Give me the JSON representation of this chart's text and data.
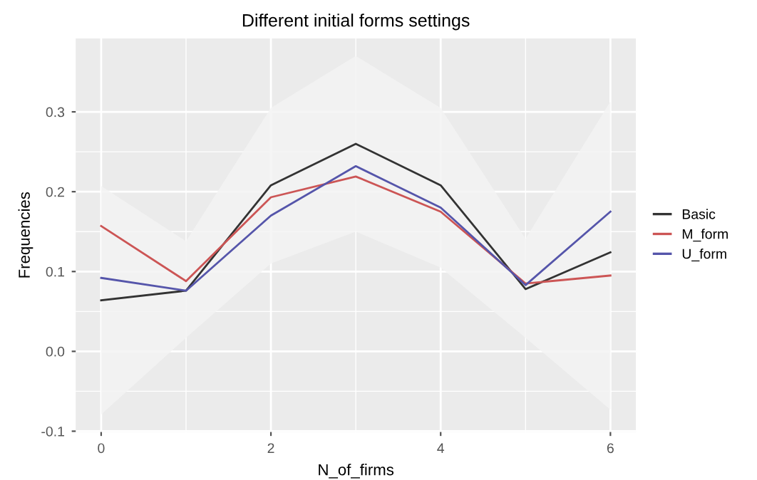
{
  "chart_data": {
    "type": "line",
    "title": "Different initial forms settings",
    "xlabel": "N_of_firms",
    "ylabel": "Frequencies",
    "x": [
      0,
      1,
      2,
      3,
      4,
      5,
      6
    ],
    "series": [
      {
        "name": "Basic",
        "color": "#333333",
        "values": [
          0.064,
          0.076,
          0.208,
          0.26,
          0.208,
          0.078,
          0.124
        ],
        "lower": [
          -0.079,
          0.017,
          0.11,
          0.15,
          0.105,
          0.017,
          -0.073
        ],
        "upper": [
          0.207,
          0.138,
          0.305,
          0.37,
          0.305,
          0.141,
          0.313
        ]
      },
      {
        "name": "M_form",
        "color": "#cc5555",
        "values": [
          0.157,
          0.088,
          0.193,
          0.219,
          0.175,
          0.085,
          0.095
        ]
      },
      {
        "name": "U_form",
        "color": "#5555aa",
        "values": [
          0.092,
          0.076,
          0.17,
          0.232,
          0.18,
          0.083,
          0.175
        ]
      }
    ],
    "xlim": [
      -0.3,
      6.3
    ],
    "ylim": [
      -0.101,
      0.392
    ],
    "xticks": [
      0,
      2,
      4,
      6
    ],
    "yticks": [
      -0.1,
      {
        "value": 0,
        "label": "0.0"
      },
      0.1,
      0.2,
      0.3
    ],
    "grid": true,
    "legend": "right",
    "marker": "none",
    "line_style": "solid"
  }
}
